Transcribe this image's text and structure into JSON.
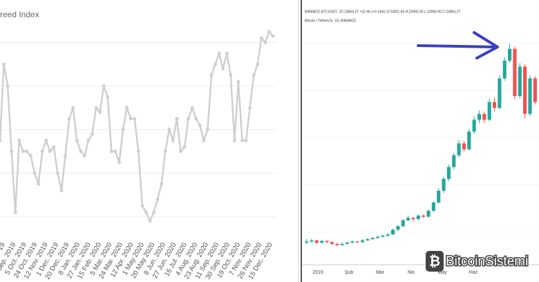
{
  "chart_data": [
    {
      "type": "line",
      "title": "reed Index",
      "color": "#cfcfcf",
      "values": [
        45,
        80,
        70,
        40,
        12,
        45,
        40,
        40,
        38,
        30,
        25,
        40,
        45,
        40,
        42,
        30,
        22,
        38,
        55,
        60,
        45,
        40,
        38,
        45,
        48,
        60,
        58,
        70,
        65,
        40,
        40,
        35,
        50,
        60,
        55,
        55,
        40,
        15,
        12,
        8,
        12,
        18,
        25,
        40,
        50,
        45,
        55,
        40,
        42,
        55,
        60,
        55,
        52,
        45,
        50,
        75,
        80,
        85,
        78,
        85,
        75,
        45,
        72,
        45,
        45,
        60,
        75,
        80,
        92,
        90,
        95,
        93
      ],
      "xticks": [
        "19",
        "16 Sep. 2019",
        "5 Oct. 2019",
        "24 Oct. 2019",
        "12 Nov. 2019",
        "1 Dec. 2019",
        "20 Dec. 2019",
        "8 Jan. 2020",
        "27 Jan. 2020",
        "15 Feb. 2020",
        "5 Mar. 2020",
        "24 Mar. 2020",
        "12 Apr. 2020",
        "1 May 2020",
        "20 May 2020",
        "8 Jun. 2020",
        "27 Jun. 2020",
        "16 Jul. 2020",
        "4 Aug. 2020",
        "23 Aug. 2020",
        "11 Sep. 2020",
        "30 Sep. 2020",
        "19 Oct. 2020",
        "7 Nov. 2020",
        "26 Nov. 2020",
        "15 Dec. 2020"
      ],
      "ylim": [
        0,
        100
      ],
      "yticks": [
        10,
        30,
        50,
        70,
        90
      ],
      "grid": true
    },
    {
      "type": "candlestick",
      "title": "Bitcoin / TetherUS, 1G, BINANCE",
      "subtitle": "BINANCE:BTCUSDT, 1D 23854.27 +32.66 (+0.14%) O:23821.60 H:23950.00 L:23060.00 C:23854.27",
      "watermark": "BitcoinSistemi",
      "up_color": "#26a69a",
      "down_color": "#ef5350",
      "candles": [
        [
          7100,
          7400,
          7000,
          7200
        ],
        [
          7200,
          7450,
          7100,
          7300
        ],
        [
          7300,
          7350,
          7000,
          7100
        ],
        [
          7100,
          7350,
          7050,
          7250
        ],
        [
          7250,
          7300,
          7050,
          7150
        ],
        [
          7150,
          7200,
          6900,
          7000
        ],
        [
          7000,
          7100,
          6800,
          6900
        ],
        [
          6900,
          7100,
          6850,
          7000
        ],
        [
          7000,
          7200,
          6950,
          7100
        ],
        [
          7100,
          7300,
          7050,
          7200
        ],
        [
          7200,
          7250,
          7050,
          7150
        ],
        [
          7150,
          7400,
          7100,
          7300
        ],
        [
          7300,
          7500,
          7250,
          7400
        ],
        [
          7400,
          7600,
          7350,
          7500
        ],
        [
          7500,
          7700,
          7450,
          7600
        ],
        [
          7600,
          7800,
          7550,
          7700
        ],
        [
          7700,
          7900,
          7600,
          7800
        ],
        [
          7800,
          8300,
          7750,
          8200
        ],
        [
          8200,
          8600,
          8100,
          8500
        ],
        [
          8500,
          9100,
          8400,
          9000
        ],
        [
          9000,
          9400,
          8900,
          9200
        ],
        [
          9200,
          9300,
          8900,
          9100
        ],
        [
          9100,
          9500,
          9000,
          9400
        ],
        [
          9400,
          9500,
          9200,
          9300
        ],
        [
          9300,
          9900,
          9250,
          9800
        ],
        [
          9800,
          10600,
          9700,
          10500
        ],
        [
          10500,
          11700,
          10400,
          11500
        ],
        [
          11500,
          12700,
          11300,
          12500
        ],
        [
          12500,
          13700,
          12300,
          13500
        ],
        [
          13500,
          14700,
          13300,
          14500
        ],
        [
          14500,
          15800,
          14300,
          15500
        ],
        [
          15500,
          15700,
          14800,
          15000
        ],
        [
          15000,
          16700,
          14900,
          16500
        ],
        [
          16500,
          17800,
          16300,
          17500
        ],
        [
          17500,
          18300,
          17200,
          18000
        ],
        [
          18000,
          18200,
          17200,
          17500
        ],
        [
          17500,
          19300,
          17400,
          19000
        ],
        [
          19000,
          19400,
          18200,
          18500
        ],
        [
          18500,
          21300,
          18400,
          21000
        ],
        [
          21000,
          22800,
          20800,
          22500
        ],
        [
          22500,
          23950,
          22300,
          23500
        ],
        [
          23500,
          23700,
          19200,
          19500
        ],
        [
          19500,
          22300,
          19300,
          22000
        ],
        [
          22000,
          22200,
          17600,
          18000
        ],
        [
          18000,
          21300,
          17800,
          21000
        ],
        [
          21000,
          21200,
          18800,
          19000
        ]
      ],
      "xticks": [
        "2019",
        "Şub",
        "Mar",
        "Nis",
        "May",
        "Haz"
      ],
      "ylim": [
        6000,
        25000
      ],
      "yticks": [
        8000,
        12000,
        16000,
        20000,
        24000
      ],
      "grid": true
    }
  ]
}
